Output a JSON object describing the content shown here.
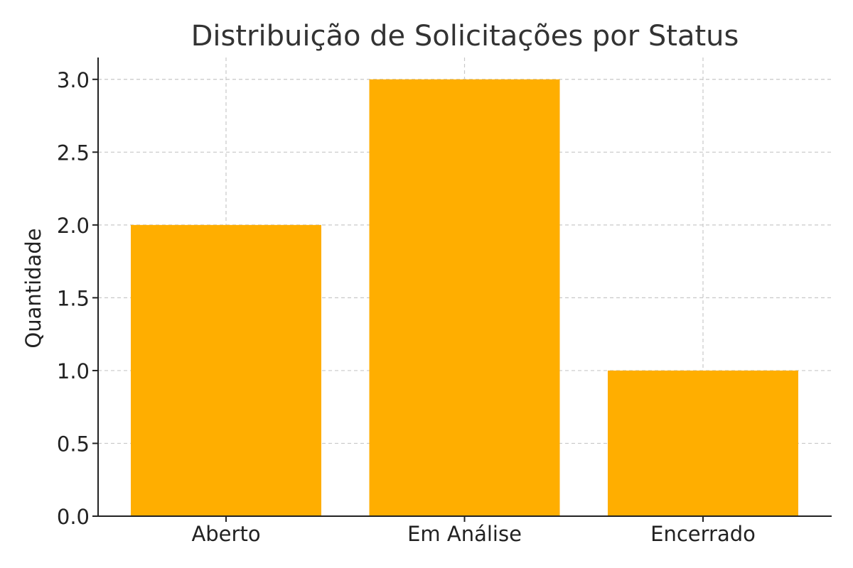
{
  "chart_data": {
    "type": "bar",
    "title": "Distribuição de Solicitações por Status",
    "xlabel": "",
    "ylabel": "Quantidade",
    "categories": [
      "Aberto",
      "Em Análise",
      "Encerrado"
    ],
    "values": [
      2,
      3,
      1
    ],
    "ylim": [
      0,
      3.15
    ],
    "yticks": [
      0.0,
      0.5,
      1.0,
      1.5,
      2.0,
      2.5,
      3.0
    ],
    "ytick_labels": [
      "0.0",
      "0.5",
      "1.0",
      "1.5",
      "2.0",
      "2.5",
      "3.0"
    ],
    "grid": true,
    "legend": "none",
    "bar_color": "#FFAE00"
  }
}
